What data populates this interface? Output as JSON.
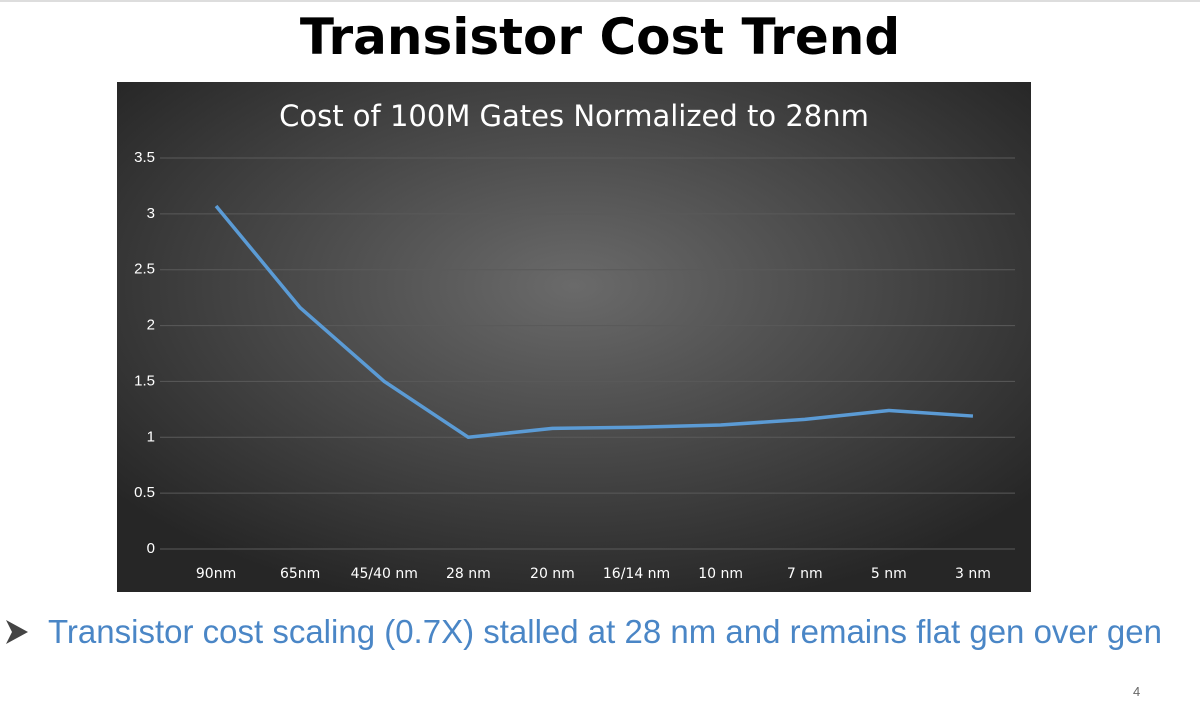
{
  "slide": {
    "title": "Transistor Cost Trend",
    "bullet": "Transistor cost scaling (0.7X) stalled at 28 nm and remains flat gen over gen",
    "page_number": "4"
  },
  "chart_data": {
    "type": "line",
    "title": "Cost of 100M Gates Normalized to 28nm",
    "categories": [
      "90nm",
      "65nm",
      "45/40 nm",
      "28 nm",
      "20 nm",
      "16/14 nm",
      "10 nm",
      "7 nm",
      "5 nm",
      "3 nm"
    ],
    "values": [
      3.07,
      2.16,
      1.5,
      1.0,
      1.08,
      1.09,
      1.11,
      1.16,
      1.24,
      1.19
    ],
    "color": "#5b9bd5",
    "ylim": [
      0,
      3.5
    ],
    "yticks": [
      0,
      0.5,
      1,
      1.5,
      2,
      2.5,
      3,
      3.5
    ],
    "grid": true
  }
}
